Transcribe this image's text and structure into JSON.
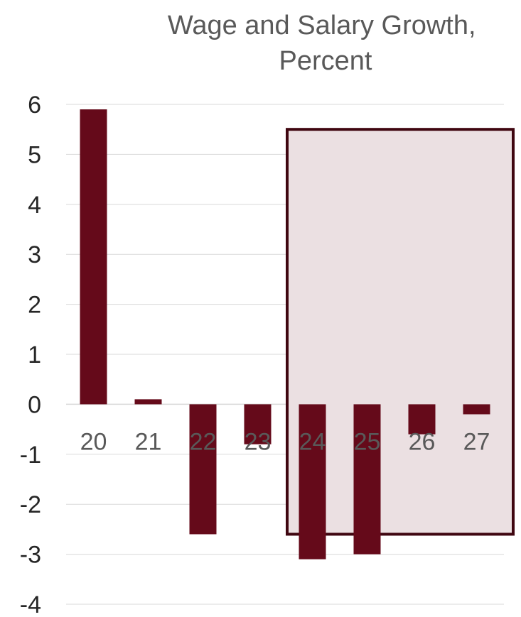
{
  "chart_data": {
    "type": "bar",
    "title": [
      "Wage and Salary Growth,",
      "Percent"
    ],
    "xlabel": "",
    "ylabel": "",
    "categories": [
      "20",
      "21",
      "22",
      "23",
      "24",
      "25",
      "26",
      "27"
    ],
    "values": [
      5.9,
      0.1,
      -2.6,
      -0.8,
      -3.1,
      -3.0,
      -0.6,
      -0.2
    ],
    "ylim": [
      -4,
      6
    ],
    "yticks": [
      "6",
      "5",
      "4",
      "3",
      "2",
      "1",
      "0",
      "-1",
      "-2",
      "-3",
      "-4"
    ],
    "grid": true,
    "legend": "none",
    "highlight": {
      "from_category": "24",
      "to_category": "27",
      "y_range": [
        -2.6,
        5.5
      ]
    },
    "colors": {
      "bar": "#650a1a",
      "highlight_fill": "#ebe0e2",
      "highlight_stroke": "#3f0610"
    }
  }
}
